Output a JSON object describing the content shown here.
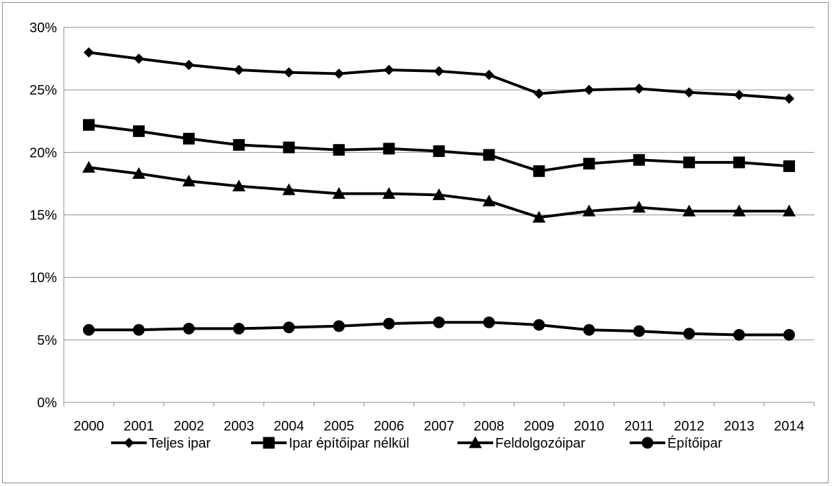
{
  "chart_data": {
    "type": "line",
    "categories": [
      "2000",
      "2001",
      "2002",
      "2003",
      "2004",
      "2005",
      "2006",
      "2007",
      "2008",
      "2009",
      "2010",
      "2011",
      "2012",
      "2013",
      "2014"
    ],
    "ylim": [
      0,
      30
    ],
    "yticks": [
      0,
      5,
      10,
      15,
      20,
      25,
      30
    ],
    "ytick_labels": [
      "0%",
      "5%",
      "10%",
      "15%",
      "20%",
      "25%",
      "30%"
    ],
    "grid": "horizontal",
    "legend_position": "bottom",
    "series": [
      {
        "name": "Teljes ipar",
        "marker": "diamond",
        "values": [
          28.0,
          27.5,
          27.0,
          26.6,
          26.4,
          26.3,
          26.6,
          26.5,
          26.2,
          24.7,
          25.0,
          25.1,
          24.8,
          24.6,
          24.3
        ]
      },
      {
        "name": "Ipar építőipar nélkül",
        "marker": "square",
        "values": [
          22.2,
          21.7,
          21.1,
          20.6,
          20.4,
          20.2,
          20.3,
          20.1,
          19.8,
          18.5,
          19.1,
          19.4,
          19.2,
          19.2,
          18.9
        ]
      },
      {
        "name": "Feldolgozóipar",
        "marker": "triangle",
        "values": [
          18.8,
          18.3,
          17.7,
          17.3,
          17.0,
          16.7,
          16.7,
          16.6,
          16.1,
          14.8,
          15.3,
          15.6,
          15.3,
          15.3,
          15.3
        ]
      },
      {
        "name": "Építőipar",
        "marker": "circle",
        "values": [
          5.8,
          5.8,
          5.9,
          5.9,
          6.0,
          6.1,
          6.3,
          6.4,
          6.4,
          6.2,
          5.8,
          5.7,
          5.5,
          5.4,
          5.4
        ]
      }
    ],
    "colors": {
      "line": "#000000",
      "grid": "#8c8c8c",
      "axis": "#8c8c8c"
    }
  }
}
